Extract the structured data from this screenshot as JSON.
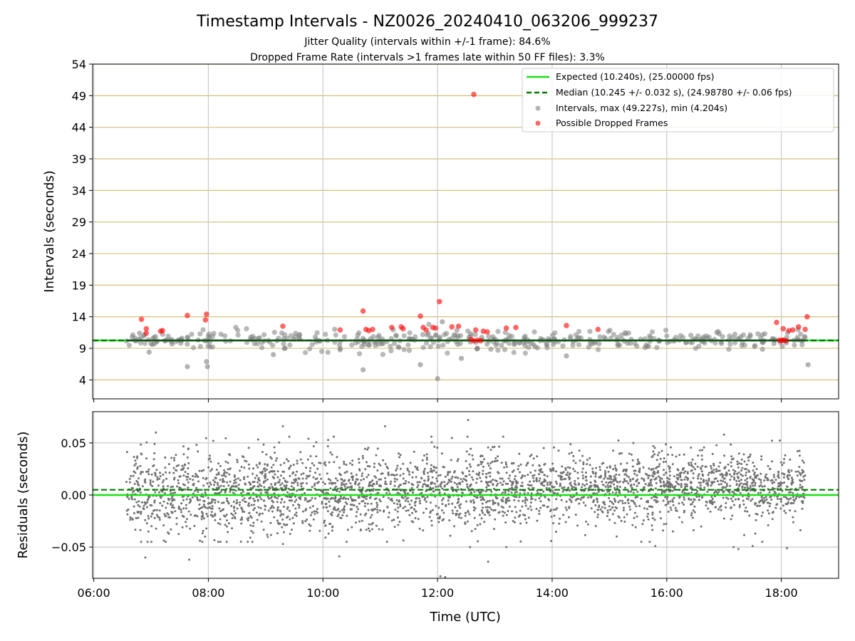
{
  "figure": {
    "title": "Timestamp Intervals - NZ0026_20240410_063206_999237",
    "subtitle_1": "Jitter Quality (intervals within +/-1 frame): 84.6%",
    "subtitle_2": "Dropped Frame Rate (intervals >1 frames late within 50 FF files): 3.3%"
  },
  "chart_data": [
    {
      "type": "scatter",
      "panel": "top",
      "ylabel": "Intervals (seconds)",
      "xlim": [
        "06:00",
        "19:00"
      ],
      "ylim": [
        1,
        54
      ],
      "y_ticks": [
        "4",
        "9",
        "14",
        "19",
        "24",
        "29",
        "34",
        "39",
        "44",
        "49",
        "54"
      ],
      "x_ticks": [
        "06:00",
        "08:00",
        "10:00",
        "12:00",
        "14:00",
        "16:00",
        "18:00"
      ],
      "grid": true,
      "legend_position": "top-right",
      "expected_line": {
        "name": "Expected (10.240s), (25.00000 fps)",
        "y": 10.24,
        "color": "#18e018"
      },
      "median_line": {
        "name": "Median (10.245 +/- 0.032 s), (24.98780 +/- 0.06 fps)",
        "y": 10.245,
        "color": "#007a00"
      },
      "intervals_series": {
        "name": "Intervals, max (49.227s), min (4.204s)",
        "color": "#808080",
        "max": 49.227,
        "min": 4.204
      },
      "dropped_series": {
        "name": "Possible Dropped Frames",
        "color": "#ff0000",
        "points": [
          [
            "06:50",
            13.6
          ],
          [
            "06:55",
            11.4
          ],
          [
            "06:55",
            12.1
          ],
          [
            "07:12",
            11.8
          ],
          [
            "07:10",
            11.7
          ],
          [
            "07:38",
            14.2
          ],
          [
            "07:58",
            14.4
          ],
          [
            "07:57",
            13.5
          ],
          [
            "09:18",
            12.5
          ],
          [
            "10:18",
            11.9
          ],
          [
            "10:42",
            14.9
          ],
          [
            "10:45",
            12.0
          ],
          [
            "10:48",
            11.8
          ],
          [
            "10:52",
            12.0
          ],
          [
            "11:12",
            12.3
          ],
          [
            "11:22",
            12.4
          ],
          [
            "11:24",
            12.1
          ],
          [
            "11:42",
            14.1
          ],
          [
            "11:45",
            12.3
          ],
          [
            "11:48",
            11.9
          ],
          [
            "11:55",
            12.3
          ],
          [
            "11:58",
            12.2
          ],
          [
            "12:02",
            16.4
          ],
          [
            "12:15",
            12.4
          ],
          [
            "12:22",
            12.5
          ],
          [
            "12:35",
            10.4
          ],
          [
            "12:38",
            10.2
          ],
          [
            "12:42",
            10.3
          ],
          [
            "12:45",
            10.2
          ],
          [
            "12:40",
            11.9
          ],
          [
            "12:48",
            11.7
          ],
          [
            "12:52",
            11.6
          ],
          [
            "12:38",
            49.2
          ],
          [
            "13:12",
            12.2
          ],
          [
            "13:22",
            12.3
          ],
          [
            "14:15",
            12.6
          ],
          [
            "14:48",
            12.0
          ],
          [
            "17:55",
            13.1
          ],
          [
            "17:58",
            10.3
          ],
          [
            "18:00",
            10.2
          ],
          [
            "18:02",
            10.3
          ],
          [
            "18:05",
            10.2
          ],
          [
            "18:02",
            12.1
          ],
          [
            "18:08",
            11.8
          ],
          [
            "18:12",
            11.9
          ],
          [
            "18:18",
            12.4
          ],
          [
            "18:25",
            12.0
          ],
          [
            "18:27",
            14.0
          ]
        ]
      },
      "interval_outliers": [
        [
          "06:58",
          8.4
        ],
        [
          "07:38",
          6.1
        ],
        [
          "07:58",
          6.9
        ],
        [
          "07:59",
          6.1
        ],
        [
          "09:08",
          8.0
        ],
        [
          "10:42",
          5.6
        ],
        [
          "11:42",
          6.4
        ],
        [
          "12:00",
          4.2
        ],
        [
          "12:25",
          7.4
        ],
        [
          "12:05",
          13.2
        ],
        [
          "14:15",
          7.8
        ],
        [
          "18:28",
          6.4
        ],
        [
          "06:48",
          11.4
        ],
        [
          "16:55",
          11.3
        ]
      ]
    },
    {
      "type": "scatter",
      "panel": "bottom",
      "xlabel": "Time (UTC)",
      "ylabel": "Residuals (seconds)",
      "xlim": [
        "06:00",
        "19:00"
      ],
      "ylim": [
        -0.08,
        0.08
      ],
      "y_ticks": [
        "0.05",
        "0.00",
        "−0.05"
      ],
      "x_ticks": [
        "06:00",
        "08:00",
        "10:00",
        "12:00",
        "14:00",
        "16:00",
        "18:00"
      ],
      "grid": true,
      "expected_line": {
        "y": 0.0,
        "color": "#18e018"
      },
      "median_line": {
        "y": 0.005,
        "color": "#007a00"
      },
      "series_color": "#707070",
      "data_range": [
        "06:34",
        "18:25"
      ],
      "outliers": [
        [
          "06:54",
          -0.06
        ],
        [
          "07:40",
          -0.062
        ],
        [
          "09:18",
          -0.047
        ],
        [
          "09:18",
          0.066
        ],
        [
          "10:17",
          -0.059
        ],
        [
          "11:05",
          0.066
        ],
        [
          "12:03",
          -0.078
        ],
        [
          "12:08",
          -0.079
        ],
        [
          "12:32",
          0.072
        ],
        [
          "12:34",
          -0.05
        ],
        [
          "12:53",
          -0.064
        ],
        [
          "13:12",
          -0.05
        ],
        [
          "15:48",
          -0.049
        ],
        [
          "17:10",
          -0.05
        ],
        [
          "17:15",
          -0.052
        ],
        [
          "17:30",
          -0.049
        ],
        [
          "17:40",
          -0.045
        ],
        [
          "18:06",
          -0.051
        ],
        [
          "17:00",
          0.058
        ],
        [
          "07:05",
          0.06
        ]
      ]
    }
  ]
}
